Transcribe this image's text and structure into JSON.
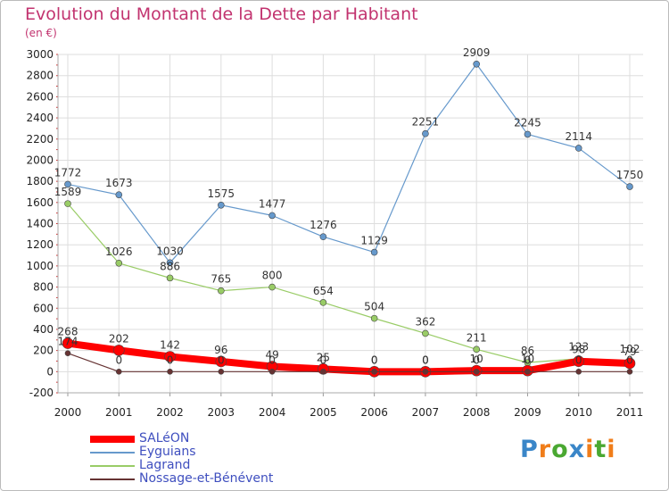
{
  "header": {
    "title": "Evolution du Montant de la Dette par Habitant",
    "unit": "(en €)"
  },
  "colors": {
    "title": "#c2336f",
    "saleon": "#ff0000",
    "eyguians": "#6699cc",
    "lagrand": "#99cc66",
    "nossage": "#663333",
    "grid": "#dddddd"
  },
  "chart_data": {
    "type": "line",
    "title": "Evolution du Montant de la Dette par Habitant",
    "ylabel": "(en €)",
    "xlabel": "",
    "x": [
      "2000",
      "2001",
      "2002",
      "2003",
      "2004",
      "2005",
      "2006",
      "2007",
      "2008",
      "2009",
      "2010",
      "2011"
    ],
    "ylim": [
      -200,
      3000
    ],
    "yticks": [
      "-200",
      "0",
      "200",
      "400",
      "600",
      "800",
      "1000",
      "1200",
      "1400",
      "1600",
      "1800",
      "2000",
      "2200",
      "2400",
      "2600",
      "2800",
      "3000"
    ],
    "grid": true,
    "legend_position": "bottom-left",
    "series": [
      {
        "name": "SALéON",
        "color": "#ff0000",
        "values": [
          268,
          202,
          142,
          96,
          49,
          25,
          0,
          0,
          10,
          10,
          98,
          79
        ],
        "labels": [
          "268",
          "202",
          "142",
          "96",
          "49",
          "25",
          "0",
          "0",
          "10",
          "10",
          "98",
          "79"
        ]
      },
      {
        "name": "Eyguians",
        "color": "#6699cc",
        "values": [
          1772,
          1673,
          1030,
          1575,
          1477,
          1276,
          1129,
          2251,
          2909,
          2245,
          2114,
          1750
        ],
        "labels": [
          "1772",
          "1673",
          "1030",
          "1575",
          "1477",
          "1276",
          "1129",
          "2251",
          "2909",
          "2245",
          "2114",
          "1750"
        ]
      },
      {
        "name": "Lagrand",
        "color": "#99cc66",
        "values": [
          1589,
          1026,
          886,
          765,
          800,
          654,
          504,
          362,
          211,
          86,
          123,
          102
        ],
        "labels": [
          "1589",
          "1026",
          "886",
          "765",
          "800",
          "654",
          "504",
          "362",
          "211",
          "86",
          "123",
          "102"
        ]
      },
      {
        "name": "Nossage-et-Bénévent",
        "color": "#663333",
        "values": [
          174,
          0,
          0,
          0,
          0,
          0,
          0,
          0,
          0,
          0,
          0,
          0
        ],
        "labels": [
          "174",
          "0",
          "0",
          "0",
          "0",
          "0",
          "0",
          "0",
          "0",
          "0",
          "0",
          "0"
        ]
      }
    ]
  },
  "logo": {
    "letters": [
      "P",
      "r",
      "o",
      "x",
      "i",
      "t",
      "i"
    ],
    "colors": [
      "#3a86c8",
      "#f07d1a",
      "#4aa832",
      "#3a86c8",
      "#f07d1a",
      "#4aa832",
      "#f07d1a"
    ]
  }
}
